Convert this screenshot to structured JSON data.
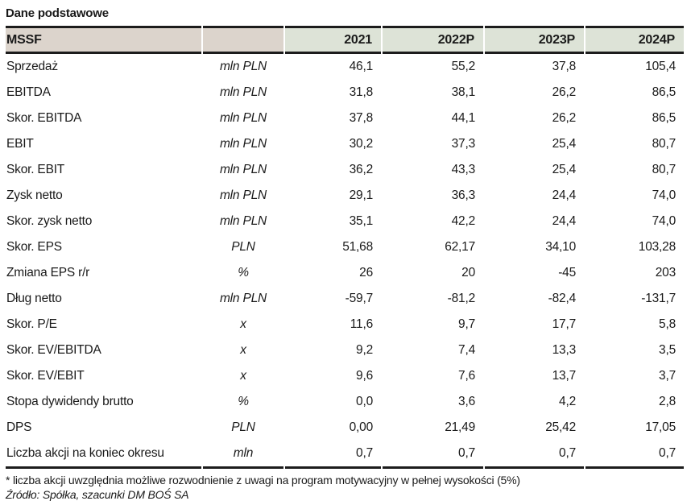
{
  "title": "Dane podstawowe",
  "table": {
    "header": {
      "label": "MSSF",
      "unit": "",
      "years": [
        "2021",
        "2022P",
        "2023P",
        "2024P"
      ]
    },
    "rows": [
      {
        "label": "Sprzedaż",
        "unit": "mln PLN",
        "values": [
          "46,1",
          "55,2",
          "37,8",
          "105,4"
        ]
      },
      {
        "label": "EBITDA",
        "unit": "mln PLN",
        "values": [
          "31,8",
          "38,1",
          "26,2",
          "86,5"
        ]
      },
      {
        "label": "Skor. EBITDA",
        "unit": "mln PLN",
        "values": [
          "37,8",
          "44,1",
          "26,2",
          "86,5"
        ]
      },
      {
        "label": "EBIT",
        "unit": "mln PLN",
        "values": [
          "30,2",
          "37,3",
          "25,4",
          "80,7"
        ]
      },
      {
        "label": "Skor. EBIT",
        "unit": "mln PLN",
        "values": [
          "36,2",
          "43,3",
          "25,4",
          "80,7"
        ]
      },
      {
        "label": "Zysk netto",
        "unit": "mln PLN",
        "values": [
          "29,1",
          "36,3",
          "24,4",
          "74,0"
        ]
      },
      {
        "label": "Skor. zysk netto",
        "unit": "mln PLN",
        "values": [
          "35,1",
          "42,2",
          "24,4",
          "74,0"
        ]
      },
      {
        "label": "Skor. EPS",
        "unit": "PLN",
        "values": [
          "51,68",
          "62,17",
          "34,10",
          "103,28"
        ]
      },
      {
        "label": "Zmiana EPS r/r",
        "unit": "%",
        "values": [
          "26",
          "20",
          "-45",
          "203"
        ]
      },
      {
        "label": "Dług netto",
        "unit": "mln PLN",
        "values": [
          "-59,7",
          "-81,2",
          "-82,4",
          "-131,7"
        ]
      },
      {
        "label": "Skor. P/E",
        "unit": "x",
        "values": [
          "11,6",
          "9,7",
          "17,7",
          "5,8"
        ]
      },
      {
        "label": "Skor. EV/EBITDA",
        "unit": "x",
        "values": [
          "9,2",
          "7,4",
          "13,3",
          "3,5"
        ]
      },
      {
        "label": "Skor. EV/EBIT",
        "unit": "x",
        "values": [
          "9,6",
          "7,6",
          "13,7",
          "3,7"
        ]
      },
      {
        "label": "Stopa dywidendy brutto",
        "unit": "%",
        "values": [
          "0,0",
          "3,6",
          "4,2",
          "2,8"
        ]
      },
      {
        "label": "DPS",
        "unit": "PLN",
        "values": [
          "0,00",
          "21,49",
          "25,42",
          "17,05"
        ]
      },
      {
        "label": "Liczba akcji na koniec okresu",
        "unit": "mln",
        "values": [
          "0,7",
          "0,7",
          "0,7",
          "0,7"
        ]
      }
    ]
  },
  "footnote": "* liczba akcji uwzględnia możliwe rozwodnienie z uwagi na program motywacyjny w pełnej wysokości (5%)",
  "source": "Źródło: Spółka, szacunki DM BOŚ SA",
  "colors": {
    "header_left_bg": "#dcd4cc",
    "header_right_bg": "#dde3d7",
    "border_color": "#1c1c1c",
    "text_color": "#1a1a1a"
  }
}
